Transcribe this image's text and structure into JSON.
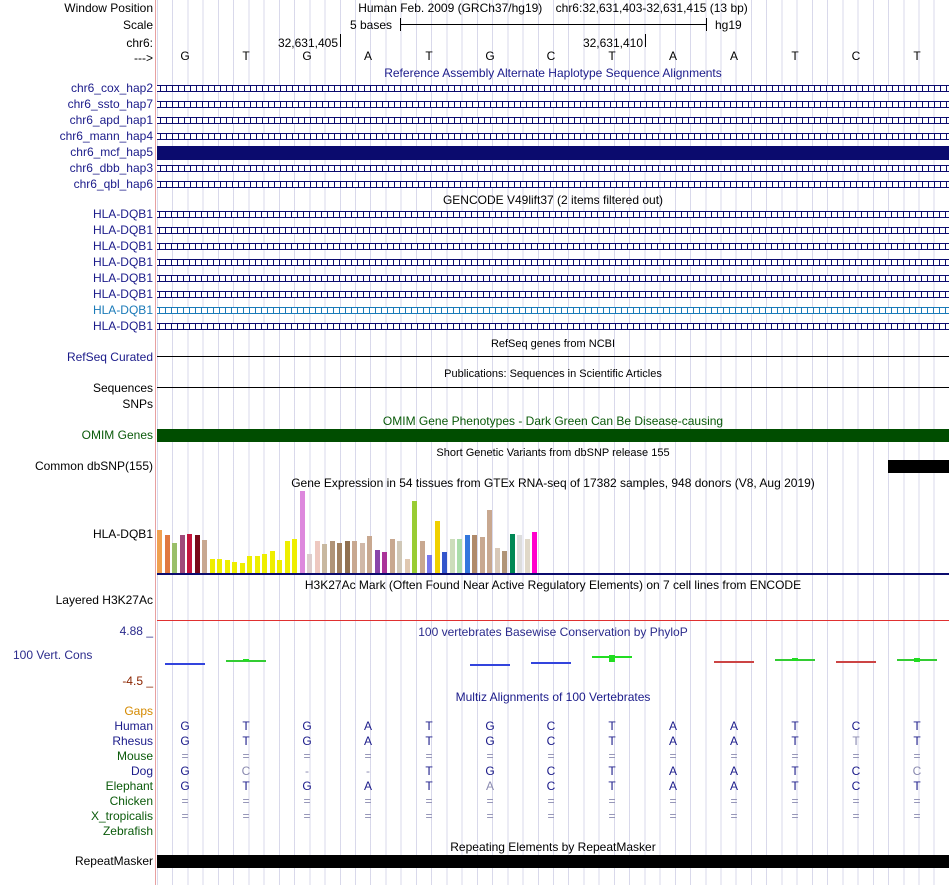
{
  "colors": {
    "navy": "#0b0b6e",
    "genome_label": "#000000",
    "alt_label": "#1b1b8a",
    "gencode_light": "#1a7ab8",
    "omim_green": "#004d00",
    "omim_label": "#0a5a0a",
    "cons_label": "#2b2b8c",
    "cons_low": "#8b2500",
    "gaps_label": "#d58a00",
    "multiz_grey": "#8a8ab0"
  },
  "header": {
    "window_position_label": "Window Position",
    "window_position_value": "Human Feb. 2009 (GRCh37/hg19)    chr6:32,631,403-32,631,415 (13 bp)",
    "scale_label": "Scale",
    "scale_text": "5 bases",
    "scale_assembly": "hg19",
    "chrom_label": "chr6:",
    "coord_1": "32,631,405",
    "coord_2": "32,631,410",
    "strand_label": "--->"
  },
  "sequence": [
    "G",
    "T",
    "G",
    "A",
    "T",
    "G",
    "C",
    "T",
    "A",
    "A",
    "T",
    "C",
    "T"
  ],
  "alt_haplotypes": {
    "title": "Reference Assembly Alternate Haplotype Sequence Alignments",
    "items": [
      {
        "label": "chr6_cox_hap2",
        "style": "right"
      },
      {
        "label": "chr6_ssto_hap7",
        "style": "right"
      },
      {
        "label": "chr6_apd_hap1",
        "style": "right"
      },
      {
        "label": "chr6_mann_hap4",
        "style": "right"
      },
      {
        "label": "chr6_mcf_hap5",
        "style": "solid"
      },
      {
        "label": "chr6_dbb_hap3",
        "style": "right"
      },
      {
        "label": "chr6_qbl_hap6",
        "style": "right"
      }
    ]
  },
  "gencode": {
    "title": "GENCODE V49lift37 (2 items filtered out)",
    "items": [
      {
        "label": "HLA-DQB1",
        "style": "left"
      },
      {
        "label": "HLA-DQB1",
        "style": "left"
      },
      {
        "label": "HLA-DQB1",
        "style": "left"
      },
      {
        "label": "HLA-DQB1",
        "style": "left"
      },
      {
        "label": "HLA-DQB1",
        "style": "left"
      },
      {
        "label": "HLA-DQB1",
        "style": "left"
      },
      {
        "label": "HLA-DQB1",
        "style": "light"
      },
      {
        "label": "HLA-DQB1",
        "style": "left"
      }
    ]
  },
  "refseq": {
    "title": "RefSeq genes from NCBI",
    "label": "RefSeq Curated"
  },
  "publications": {
    "title": "Publications: Sequences in Scientific Articles",
    "label": "Sequences"
  },
  "snps_label": "SNPs",
  "omim": {
    "title": "OMIM Gene Phenotypes - Dark Green Can Be Disease-causing",
    "label": "OMIM Genes"
  },
  "dbsnp": {
    "title": "Short Genetic Variants from dbSNP release 155",
    "label": "Common dbSNP(155)"
  },
  "gtex": {
    "title": "Gene Expression in 54 tissues from GTEx RNA-seq of 17382 samples, 948 donors (V8, Aug 2019)",
    "label": "HLA-DQB1",
    "bars": [
      {
        "v": 0.52,
        "c": "#f0a050"
      },
      {
        "v": 0.46,
        "c": "#e07840"
      },
      {
        "v": 0.36,
        "c": "#9abf6a"
      },
      {
        "v": 0.46,
        "c": "#a04a7a"
      },
      {
        "v": 0.48,
        "c": "#c4143c"
      },
      {
        "v": 0.46,
        "c": "#7a0a1a"
      },
      {
        "v": 0.4,
        "c": "#c8a890"
      },
      {
        "v": 0.17,
        "c": "#eeee00"
      },
      {
        "v": 0.17,
        "c": "#eeee00"
      },
      {
        "v": 0.16,
        "c": "#eeee00"
      },
      {
        "v": 0.14,
        "c": "#eeee00"
      },
      {
        "v": 0.12,
        "c": "#eeee00"
      },
      {
        "v": 0.21,
        "c": "#eeee00"
      },
      {
        "v": 0.21,
        "c": "#eeee00"
      },
      {
        "v": 0.23,
        "c": "#eeee00"
      },
      {
        "v": 0.27,
        "c": "#eeee00"
      },
      {
        "v": 0.16,
        "c": "#eeee00"
      },
      {
        "v": 0.39,
        "c": "#eeee00"
      },
      {
        "v": 0.42,
        "c": "#eeee00"
      },
      {
        "v": 1.0,
        "c": "#dd88dd"
      },
      {
        "v": 0.23,
        "c": "#ddcccc"
      },
      {
        "v": 0.39,
        "c": "#eec8c0"
      },
      {
        "v": 0.35,
        "c": "#c8b8a0"
      },
      {
        "v": 0.39,
        "c": "#b09478"
      },
      {
        "v": 0.36,
        "c": "#a08060"
      },
      {
        "v": 0.39,
        "c": "#907050"
      },
      {
        "v": 0.39,
        "c": "#c8a890"
      },
      {
        "v": 0.36,
        "c": "#d0b8a8"
      },
      {
        "v": 0.45,
        "c": "#c8a890"
      },
      {
        "v": 0.28,
        "c": "#8844aa"
      },
      {
        "v": 0.26,
        "c": "#aa3399"
      },
      {
        "v": 0.42,
        "c": "#c8a890"
      },
      {
        "v": 0.39,
        "c": "#d0c8b8"
      },
      {
        "v": 0.17,
        "c": "#e0c8b0"
      },
      {
        "v": 0.88,
        "c": "#99cc33"
      },
      {
        "v": 0.39,
        "c": "#c8a890"
      },
      {
        "v": 0.22,
        "c": "#7777ee"
      },
      {
        "v": 0.63,
        "c": "#f0d000"
      },
      {
        "v": 0.26,
        "c": "#3355cc"
      },
      {
        "v": 0.41,
        "c": "#ccddbb"
      },
      {
        "v": 0.42,
        "c": "#aaddaa"
      },
      {
        "v": 0.46,
        "c": "#3377dd"
      },
      {
        "v": 0.46,
        "c": "#b08a6a"
      },
      {
        "v": 0.44,
        "c": "#c8a890"
      },
      {
        "v": 0.77,
        "c": "#c8a890"
      },
      {
        "v": 0.3,
        "c": "#d8c8b8"
      },
      {
        "v": 0.27,
        "c": "#b09478"
      },
      {
        "v": 0.47,
        "c": "#008855"
      },
      {
        "v": 0.46,
        "c": "#dddddd"
      },
      {
        "v": 0.41,
        "c": "#e0d8c8"
      },
      {
        "v": 0.5,
        "c": "#ff00cc"
      }
    ]
  },
  "h3k27ac": {
    "title": "H3K27Ac Mark (Often Found Near Active Regulatory Elements) on 7 cell lines from ENCODE",
    "label": "Layered H3K27Ac"
  },
  "conservation": {
    "title": "100 vertebrates Basewise Conservation by PhyloP",
    "label": "100 Vert. Cons",
    "max": "4.88 _",
    "min": "-4.5 _",
    "values": [
      -0.3,
      0.4,
      0.0,
      0.0,
      0.0,
      -0.5,
      -0.1,
      1.2,
      0.0,
      0.2,
      0.5,
      0.2,
      0.6
    ]
  },
  "multiz": {
    "title": "Multiz Alignments of 100 Vertebrates",
    "gaps_label": "Gaps",
    "species": [
      {
        "name": "Human",
        "color": "#1b1b8a",
        "cells": [
          "G",
          "T",
          "G",
          "A",
          "T",
          "G",
          "C",
          "T",
          "A",
          "A",
          "T",
          "C",
          "T"
        ],
        "grey": []
      },
      {
        "name": "Rhesus",
        "color": "#1b1b8a",
        "cells": [
          "G",
          "T",
          "G",
          "A",
          "T",
          "G",
          "C",
          "T",
          "A",
          "A",
          "T",
          "T",
          "T"
        ],
        "grey": [
          11
        ]
      },
      {
        "name": "Mouse",
        "color": "#0a5a0a",
        "cells": [
          "=",
          "=",
          "=",
          "=",
          "=",
          "=",
          "=",
          "=",
          "=",
          "=",
          "=",
          "=",
          "="
        ],
        "grey": [
          0,
          1,
          2,
          3,
          4,
          5,
          6,
          7,
          8,
          9,
          10,
          11,
          12
        ]
      },
      {
        "name": "Dog",
        "color": "#1b1b8a",
        "cells": [
          "G",
          "C",
          "-",
          "-",
          "T",
          "G",
          "C",
          "T",
          "A",
          "A",
          "T",
          "C",
          "C"
        ],
        "grey": [
          1,
          2,
          3,
          12
        ]
      },
      {
        "name": "Elephant",
        "color": "#0a5a0a",
        "cells": [
          "G",
          "T",
          "G",
          "A",
          "T",
          "A",
          "C",
          "T",
          "A",
          "A",
          "T",
          "C",
          "T"
        ],
        "grey": [
          5
        ]
      },
      {
        "name": "Chicken",
        "color": "#0a5a0a",
        "cells": [
          "=",
          "=",
          "=",
          "=",
          "=",
          "=",
          "=",
          "=",
          "=",
          "=",
          "=",
          "=",
          "="
        ],
        "grey": [
          0,
          1,
          2,
          3,
          4,
          5,
          6,
          7,
          8,
          9,
          10,
          11,
          12
        ]
      },
      {
        "name": "X_tropicalis",
        "color": "#0a5a0a",
        "cells": [
          "=",
          "=",
          "=",
          "=",
          "=",
          "=",
          "=",
          "=",
          "=",
          "=",
          "=",
          "=",
          "="
        ],
        "grey": [
          0,
          1,
          2,
          3,
          4,
          5,
          6,
          7,
          8,
          9,
          10,
          11,
          12
        ]
      },
      {
        "name": "Zebrafish",
        "color": "#0a5a0a",
        "cells": [
          "",
          "",
          "",
          "",
          "",
          "",
          "",
          "",
          "",
          "",
          "",
          "",
          ""
        ],
        "grey": []
      }
    ]
  },
  "repeatmasker": {
    "title": "Repeating Elements by RepeatMasker",
    "label": "RepeatMasker"
  }
}
